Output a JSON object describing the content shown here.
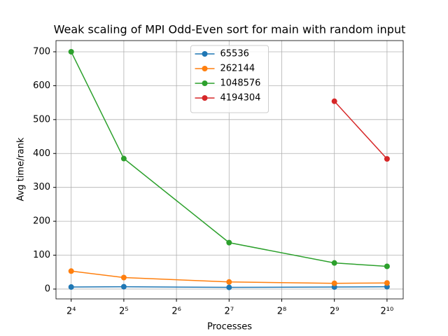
{
  "chart_data": {
    "type": "line",
    "title": "Weak scaling of MPI Odd-Even sort for main with random input",
    "x_label": "Processes",
    "y_label": "Avg time/rank",
    "x": [
      16,
      32,
      128,
      512,
      1024
    ],
    "xscale": "log2",
    "xlim": [
      13.1,
      1267
    ],
    "ylim": [
      -29,
      733
    ],
    "xticks": [
      {
        "value": 16,
        "label": "2⁴"
      },
      {
        "value": 32,
        "label": "2⁵"
      },
      {
        "value": 64,
        "label": "2⁶"
      },
      {
        "value": 128,
        "label": "2⁷"
      },
      {
        "value": 256,
        "label": "2⁸"
      },
      {
        "value": 512,
        "label": "2⁹"
      },
      {
        "value": 1024,
        "label": "2¹⁰"
      }
    ],
    "yticks": [
      0,
      100,
      200,
      300,
      400,
      500,
      600,
      700
    ],
    "grid": true,
    "legend": "upper center",
    "series": [
      {
        "name": "65536",
        "color": "#1f77b4",
        "values": [
          6,
          7,
          5,
          6,
          7
        ]
      },
      {
        "name": "262144",
        "color": "#ff7f0e",
        "values": [
          53,
          34,
          21,
          17,
          18
        ]
      },
      {
        "name": "1048576",
        "color": "#2ca02c",
        "values": [
          700,
          385,
          137,
          77,
          67
        ]
      },
      {
        "name": "4194304",
        "color": "#d62728",
        "values": [
          null,
          null,
          null,
          554,
          384
        ]
      }
    ]
  }
}
